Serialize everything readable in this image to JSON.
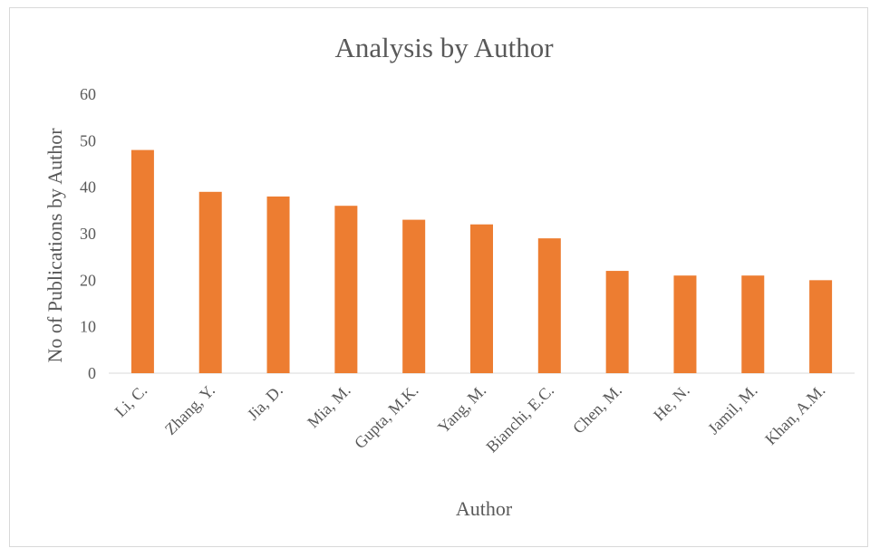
{
  "chart_data": {
    "type": "bar",
    "title": "Analysis  by Author",
    "xlabel": "Author",
    "ylabel": "No of Publications by Author",
    "categories": [
      "Li, C.",
      "Zhang, Y.",
      "Jia, D.",
      "Mia, M.",
      "Gupta, M.K.",
      "Yang, M.",
      "Bianchi, E.C.",
      "Chen, M.",
      "He, N.",
      "Jamil, M.",
      "Khan, A.M."
    ],
    "values": [
      48,
      39,
      38,
      36,
      33,
      32,
      29,
      22,
      21,
      21,
      20
    ],
    "ylim": [
      0,
      60
    ],
    "yticks": [
      0,
      10,
      20,
      30,
      40,
      50,
      60
    ],
    "bar_color": "#ED7D31",
    "grid": false,
    "legend": "none"
  }
}
